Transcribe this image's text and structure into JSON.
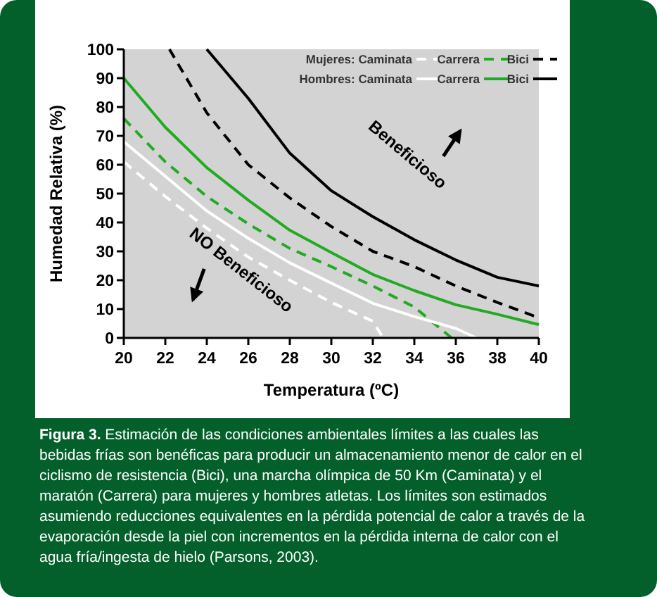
{
  "chart_data": {
    "type": "line",
    "xlabel": "Temperatura (ºC)",
    "ylabel": "Humedad Relativa (%)",
    "xlim": [
      20,
      40
    ],
    "ylim": [
      0,
      100
    ],
    "xticks": [
      20,
      22,
      24,
      26,
      28,
      30,
      32,
      34,
      36,
      38,
      40
    ],
    "yticks": [
      0,
      10,
      20,
      30,
      40,
      50,
      60,
      70,
      80,
      90,
      100
    ],
    "grid": false,
    "legend": "top right",
    "series": [
      {
        "name": "Mujeres: Caminata",
        "color": "#ffffff",
        "line_style": "dashed",
        "x": [
          20,
          22,
          24,
          26,
          28,
          30,
          32,
          32.5
        ],
        "values": [
          61,
          49,
          38,
          28,
          20,
          12.3,
          5.8,
          0
        ]
      },
      {
        "name": "Carrera",
        "color": "#22aa22",
        "line_style": "dashed",
        "x": [
          20,
          22,
          24,
          26,
          28,
          30,
          32,
          34,
          35.8
        ],
        "values": [
          76,
          61,
          49,
          39.5,
          31,
          24.7,
          18,
          10.7,
          0
        ]
      },
      {
        "name": "Bici",
        "color": "#000000",
        "line_style": "dashed",
        "x": [
          22.2,
          24,
          26,
          28,
          30,
          32,
          34,
          36,
          38,
          40
        ],
        "values": [
          100,
          78,
          60,
          48.5,
          38.6,
          30,
          24.7,
          18,
          12.3,
          7
        ]
      },
      {
        "name": "Hombres: Caminata",
        "color": "#ffffff",
        "line_style": "solid",
        "x": [
          20,
          22,
          24,
          26,
          28,
          30,
          32,
          34,
          36,
          37
        ],
        "values": [
          68,
          56,
          44,
          34.5,
          26,
          19,
          12,
          7.4,
          3.3,
          0
        ]
      },
      {
        "name": "Carrera",
        "color": "#22aa22",
        "line_style": "solid",
        "x": [
          20,
          22,
          24,
          26,
          28,
          30,
          32,
          34,
          36,
          38,
          40
        ],
        "values": [
          90,
          73,
          59,
          47.7,
          37.3,
          29.6,
          22,
          16.4,
          11.5,
          8.2,
          4.6
        ]
      },
      {
        "name": "Bici",
        "color": "#000000",
        "line_style": "solid",
        "x": [
          24,
          26,
          28,
          30,
          32,
          34,
          36,
          38,
          40
        ],
        "values": [
          100,
          83,
          64,
          51,
          42,
          34,
          27,
          21,
          18
        ]
      }
    ],
    "annotations": [
      "Beneficioso",
      "NO Beneficioso",
      "Figura 3. Estimación de las condiciones ambientales límites a las cuales las bebidas frías son benéficas para producir un almacenamiento menor de calor en el ciclismo de resistencia (Bici), una marcha olímpica de 50 Km (Caminata) y el maratón (Carrera) para mujeres y hombres atletas. Los límites son estimados asumiendo reducciones equivalentes en la pérdida potencial de calor a través de la evaporación desde la piel con incrementos en la pérdida interna de calor con el agua fría/ingesta de hielo (Parsons, 2003)."
    ]
  }
}
